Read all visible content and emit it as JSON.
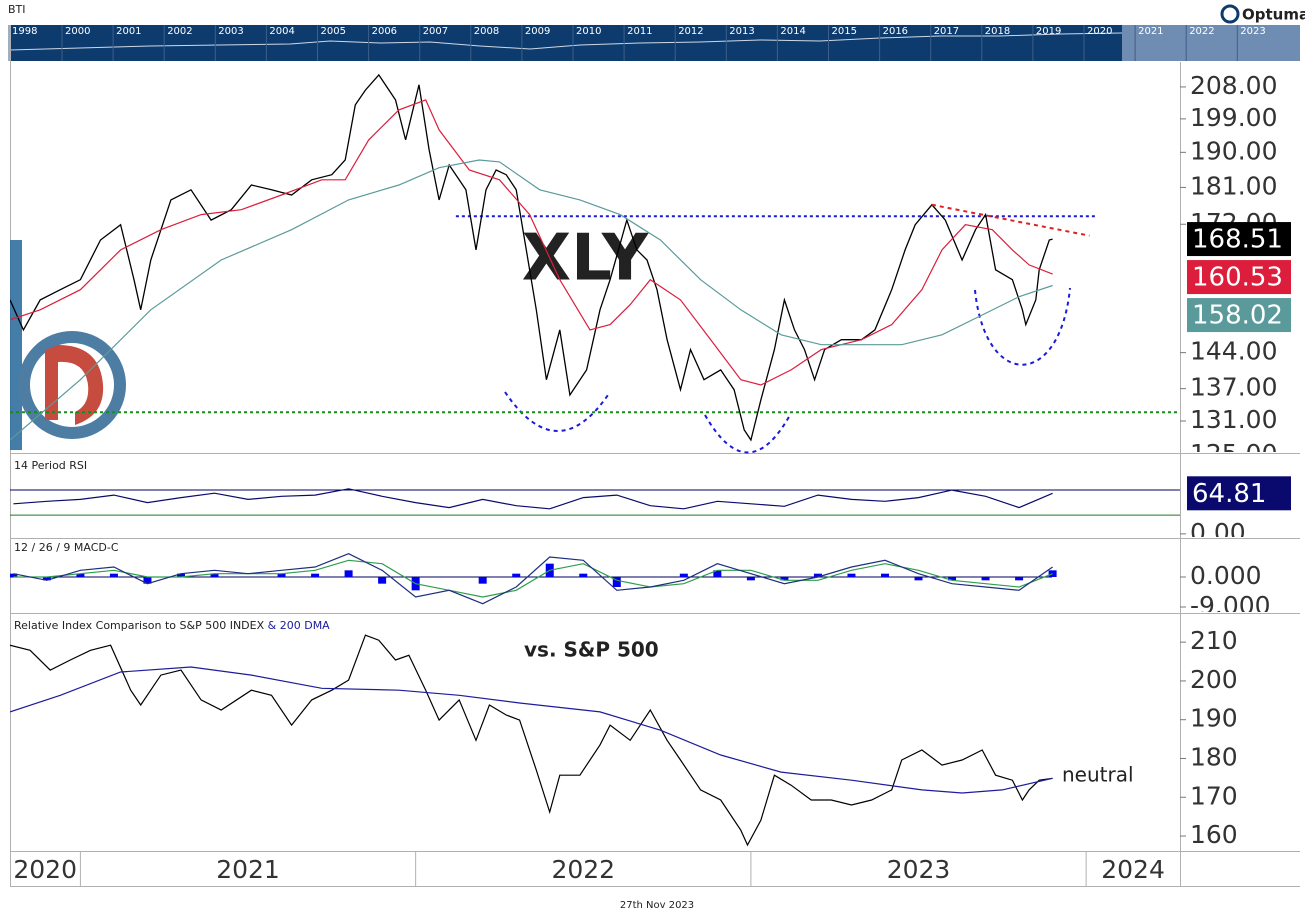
{
  "header": {
    "symbol": "BTI",
    "brand": "Optuma"
  },
  "timeline": [
    "1998",
    "2000",
    "2001",
    "2002",
    "2003",
    "2004",
    "2005",
    "2006",
    "2007",
    "2008",
    "2009",
    "2010",
    "2011",
    "2012",
    "2013",
    "2014",
    "2015",
    "2016",
    "2017",
    "2018",
    "2019",
    "2020",
    "2021",
    "2022",
    "2023"
  ],
  "footer": "27th Nov 2023",
  "chart_data": [
    {
      "type": "line",
      "title": "XLY",
      "log_scale": true,
      "xlim": [
        2020.79,
        2024.28
      ],
      "ylim": [
        125.5,
        215.3
      ],
      "yticks": [
        {
          "value": 208,
          "label": "208.00"
        },
        {
          "value": 199,
          "label": "199.00"
        },
        {
          "value": 190,
          "label": "190.00"
        },
        {
          "value": 181,
          "label": "181.00"
        },
        {
          "value": 172,
          "label": "172.00"
        },
        {
          "value": 144,
          "label": "144.00"
        },
        {
          "value": 137,
          "label": "137.00"
        },
        {
          "value": 131,
          "label": "131.00"
        },
        {
          "value": 125,
          "label": "125.00"
        }
      ],
      "series": [
        {
          "color": "#000000",
          "last_label": "168.51",
          "x": [
            2020.79,
            2020.83,
            2020.88,
            2020.94,
            2021.0,
            2021.06,
            2021.12,
            2021.16,
            2021.18,
            2021.21,
            2021.27,
            2021.33,
            2021.39,
            2021.45,
            2021.51,
            2021.57,
            2021.63,
            2021.69,
            2021.75,
            2021.79,
            2021.82,
            2021.85,
            2021.89,
            2021.94,
            2021.97,
            2022.01,
            2022.04,
            2022.07,
            2022.1,
            2022.15,
            2022.18,
            2022.21,
            2022.24,
            2022.27,
            2022.3,
            2022.33,
            2022.36,
            2022.39,
            2022.43,
            2022.46,
            2022.51,
            2022.55,
            2022.58,
            2022.63,
            2022.66,
            2022.69,
            2022.72,
            2022.75,
            2022.79,
            2022.82,
            2022.86,
            2022.91,
            2022.95,
            2022.98,
            2023.0,
            2023.03,
            2023.07,
            2023.1,
            2023.13,
            2023.16,
            2023.19,
            2023.22,
            2023.27,
            2023.33,
            2023.37,
            2023.42,
            2023.46,
            2023.49,
            2023.54,
            2023.58,
            2023.63,
            2023.67,
            2023.7,
            2023.73,
            2023.78,
            2023.81,
            2023.82,
            2023.85,
            2023.86,
            2023.89,
            2023.9
          ],
          "values": [
            154.9,
            148.6,
            154.9,
            157.1,
            159.3,
            168.3,
            171.9,
            159.3,
            152.8,
            163.7,
            177.9,
            180.4,
            173.0,
            175.5,
            181.6,
            180.4,
            179.1,
            182.9,
            184.2,
            188.0,
            202.9,
            207.1,
            211.5,
            204.3,
            193.3,
            208.6,
            190.7,
            177.9,
            186.7,
            180.4,
            166.0,
            180.4,
            185.4,
            184.2,
            180.4,
            166.0,
            152.8,
            138.7,
            148.6,
            135.8,
            140.6,
            152.8,
            159.3,
            173.0,
            166.0,
            163.7,
            157.1,
            146.6,
            136.8,
            144.6,
            138.7,
            140.6,
            136.8,
            129.4,
            127.6,
            134.9,
            144.6,
            154.9,
            148.6,
            144.6,
            138.7,
            144.6,
            146.6,
            146.6,
            148.6,
            157.1,
            166.0,
            171.9,
            176.7,
            173.0,
            163.7,
            170.7,
            174.3,
            161.5,
            159.3,
            152.8,
            149.7,
            154.9,
            161.5,
            168.3,
            168.51
          ]
        },
        {
          "color": "#dc1e3c",
          "last_label": "160.53",
          "x": [
            2020.79,
            2020.88,
            2021.0,
            2021.12,
            2021.24,
            2021.36,
            2021.48,
            2021.6,
            2021.72,
            2021.79,
            2021.86,
            2021.95,
            2022.03,
            2022.07,
            2022.16,
            2022.25,
            2022.34,
            2022.43,
            2022.52,
            2022.58,
            2022.64,
            2022.7,
            2022.79,
            2022.88,
            2022.97,
            2023.03,
            2023.12,
            2023.21,
            2023.33,
            2023.42,
            2023.51,
            2023.57,
            2023.64,
            2023.72,
            2023.78,
            2023.83,
            2023.9
          ],
          "values": [
            150.7,
            152.8,
            157.1,
            166.0,
            170.7,
            174.3,
            175.5,
            179.1,
            182.9,
            182.9,
            193.3,
            201.5,
            204.3,
            196.0,
            185.4,
            182.9,
            174.3,
            159.3,
            148.6,
            149.7,
            153.9,
            159.3,
            154.9,
            146.6,
            138.7,
            137.7,
            140.6,
            144.6,
            146.6,
            149.7,
            157.1,
            166.0,
            171.9,
            170.7,
            166.0,
            162.6,
            160.53
          ]
        },
        {
          "color": "#5b9a9a",
          "last_label": "158.02",
          "x": [
            2020.79,
            2021.0,
            2021.21,
            2021.42,
            2021.63,
            2021.8,
            2021.95,
            2022.07,
            2022.19,
            2022.25,
            2022.37,
            2022.49,
            2022.61,
            2022.73,
            2022.85,
            2022.97,
            2023.09,
            2023.21,
            2023.33,
            2023.45,
            2023.57,
            2023.69,
            2023.8,
            2023.9
          ],
          "values": [
            127.6,
            138.7,
            152.8,
            163.7,
            170.7,
            177.9,
            181.6,
            186.0,
            188.0,
            187.5,
            180.4,
            177.9,
            174.3,
            168.3,
            159.3,
            152.8,
            147.6,
            145.6,
            145.6,
            145.6,
            147.6,
            151.7,
            155.6,
            158.02
          ]
        }
      ],
      "hlines": [
        {
          "value": 173.9,
          "x": [
            2022.12,
            2024.03
          ],
          "color": "#1a1adb"
        },
        {
          "value": 132.6,
          "color": "#1a8a1a"
        }
      ],
      "trendline": {
        "x": [
          2023.54,
          2024.01
        ],
        "values": [
          176.7,
          169.3
        ],
        "color": "#e02020"
      }
    },
    {
      "type": "line",
      "title": "14 Period RSI",
      "xlim": [
        2020.79,
        2024.28
      ],
      "ylim": [
        -5,
        126
      ],
      "yticks": [
        {
          "value": 0,
          "label": "0.00"
        }
      ],
      "levels": [
        {
          "value": 70,
          "color": "#000060"
        },
        {
          "value": 30,
          "color": "#1a7a1a"
        }
      ],
      "x": [
        2020.8,
        2020.9,
        2021.0,
        2021.1,
        2021.2,
        2021.3,
        2021.4,
        2021.5,
        2021.6,
        2021.7,
        2021.8,
        2021.9,
        2022.0,
        2022.1,
        2022.2,
        2022.3,
        2022.4,
        2022.5,
        2022.6,
        2022.7,
        2022.8,
        2022.9,
        2023.0,
        2023.1,
        2023.2,
        2023.3,
        2023.4,
        2023.5,
        2023.6,
        2023.7,
        2023.8,
        2023.9
      ],
      "series": [
        {
          "color": "#0a0a6e",
          "last_label": "64.81",
          "values": [
            48,
            52,
            55,
            62,
            50,
            58,
            65,
            55,
            60,
            62,
            72,
            60,
            50,
            42,
            55,
            45,
            40,
            58,
            62,
            45,
            40,
            52,
            48,
            44,
            62,
            55,
            52,
            58,
            70,
            60,
            42,
            64.81
          ]
        }
      ]
    },
    {
      "type": "line",
      "title": "12 / 26 / 9 MACD-C",
      "xlim": [
        2020.79,
        2024.28
      ],
      "ylim": [
        -10.5,
        11.1
      ],
      "yticks": [
        {
          "value": 0,
          "label": "0.000"
        },
        {
          "value": -9,
          "label": "-9.000"
        }
      ],
      "x": [
        2020.8,
        2020.9,
        2021.0,
        2021.1,
        2021.2,
        2021.3,
        2021.4,
        2021.5,
        2021.6,
        2021.7,
        2021.8,
        2021.9,
        2022.0,
        2022.1,
        2022.2,
        2022.3,
        2022.4,
        2022.5,
        2022.6,
        2022.7,
        2022.8,
        2022.9,
        2023.0,
        2023.1,
        2023.2,
        2023.3,
        2023.4,
        2023.5,
        2023.6,
        2023.7,
        2023.8,
        2023.9
      ],
      "histogram": {
        "color": "#0000ee",
        "values": [
          1,
          -1,
          1,
          1,
          -2,
          1,
          1,
          0,
          1,
          1,
          2,
          -2,
          -4,
          0,
          -2,
          1,
          4,
          1,
          -3,
          0,
          1,
          2,
          -1,
          -1,
          1,
          1,
          1,
          -1,
          -1,
          -1,
          -1,
          2
        ]
      },
      "series": [
        {
          "color": "#2e9e4a",
          "values": [
            0,
            0,
            1,
            2,
            0,
            0,
            1,
            1,
            1,
            2,
            5,
            4,
            -2,
            -4,
            -6,
            -4,
            2,
            4,
            -1,
            -3,
            -2,
            2,
            2,
            -1,
            -1,
            2,
            4,
            2,
            -1,
            -2,
            -3,
            1
          ]
        },
        {
          "color": "#1f2f7f",
          "values": [
            1,
            -1,
            2,
            3,
            -2,
            1,
            2,
            1,
            2,
            3,
            7,
            2,
            -6,
            -4,
            -8,
            -3,
            6,
            5,
            -4,
            -3,
            -1,
            4,
            1,
            -2,
            0,
            3,
            5,
            1,
            -2,
            -3,
            -4,
            3
          ]
        }
      ]
    },
    {
      "type": "line",
      "title": "Relative Index Comparison to S&P 500 INDEX",
      "subtitle": "& 200 DMA",
      "annotations": [
        "vs. S&P 500",
        "neutral"
      ],
      "xlim": [
        2020.79,
        2024.28
      ],
      "ylim": [
        156.4,
        217
      ],
      "xticks": [
        2020,
        2021,
        2022,
        2023,
        2024
      ],
      "yticks": [
        210,
        200,
        190,
        180,
        170,
        160
      ],
      "series": [
        {
          "color": "#000000",
          "x": [
            2020.79,
            2020.85,
            2020.91,
            2020.97,
            2021.03,
            2021.09,
            2021.15,
            2021.18,
            2021.24,
            2021.3,
            2021.36,
            2021.42,
            2021.51,
            2021.57,
            2021.63,
            2021.69,
            2021.75,
            2021.8,
            2021.85,
            2021.89,
            2021.94,
            2021.98,
            2022.03,
            2022.07,
            2022.13,
            2022.18,
            2022.22,
            2022.27,
            2022.31,
            2022.36,
            2022.4,
            2022.43,
            2022.49,
            2022.55,
            2022.58,
            2022.64,
            2022.7,
            2022.75,
            2022.79,
            2022.85,
            2022.91,
            2022.97,
            2022.99,
            2023.03,
            2023.07,
            2023.12,
            2023.18,
            2023.24,
            2023.3,
            2023.36,
            2023.42,
            2023.45,
            2023.51,
            2023.57,
            2023.63,
            2023.69,
            2023.73,
            2023.78,
            2023.81,
            2023.83,
            2023.86,
            2023.9
          ],
          "values": [
            209.2,
            207.9,
            202.8,
            205.4,
            207.9,
            209.2,
            197.6,
            193.8,
            201.5,
            202.8,
            195.1,
            192.5,
            197.6,
            196.3,
            188.6,
            195.1,
            197.6,
            200.2,
            211.8,
            210.5,
            205.4,
            206.6,
            197.6,
            189.9,
            195.1,
            184.7,
            193.8,
            191.2,
            189.9,
            177.0,
            166.2,
            175.7,
            175.7,
            183.5,
            188.6,
            184.7,
            192.5,
            184.7,
            179.6,
            171.9,
            169.3,
            161.5,
            157.7,
            164.1,
            175.7,
            173.1,
            169.3,
            169.3,
            168.0,
            169.3,
            171.9,
            179.6,
            182.2,
            178.3,
            179.6,
            182.2,
            175.7,
            174.4,
            169.3,
            171.9,
            174.4,
            174.9
          ]
        },
        {
          "color": "#1c1c9c",
          "x": [
            2020.79,
            2020.94,
            2021.12,
            2021.33,
            2021.51,
            2021.72,
            2021.95,
            2022.13,
            2022.31,
            2022.55,
            2022.73,
            2022.91,
            2023.09,
            2023.3,
            2023.51,
            2023.63,
            2023.75,
            2023.9
          ],
          "values": [
            192.0,
            196.3,
            202.3,
            203.6,
            201.5,
            198.1,
            197.6,
            196.3,
            194.3,
            192.0,
            187.3,
            180.9,
            176.5,
            174.4,
            171.9,
            171.1,
            171.9,
            174.9
          ]
        }
      ]
    }
  ]
}
